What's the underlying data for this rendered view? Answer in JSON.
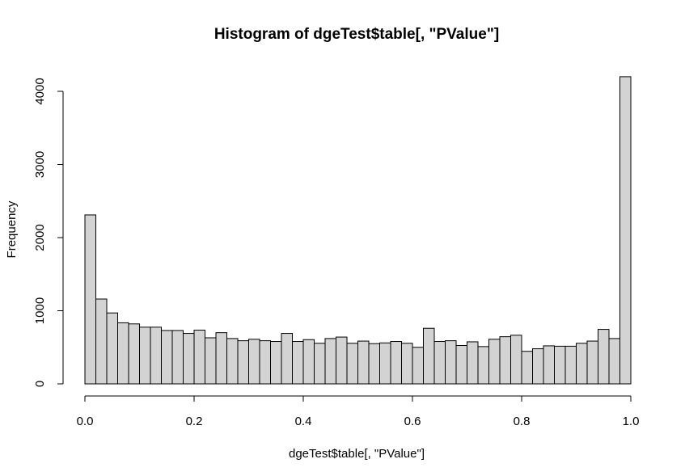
{
  "chart_data": {
    "type": "bar",
    "title": "Histogram of dgeTest$table[, \"PValue\"]",
    "xlabel": "dgeTest$table[, \"PValue\"]",
    "ylabel": "Frequency",
    "bin_width": 0.02,
    "x_range": [
      0,
      1
    ],
    "ylim": [
      0,
      4200
    ],
    "x_ticks": [
      "0.0",
      "0.2",
      "0.4",
      "0.6",
      "0.8",
      "1.0"
    ],
    "x_tick_values": [
      0,
      0.2,
      0.4,
      0.6,
      0.8,
      1.0
    ],
    "y_ticks": [
      "0",
      "1000",
      "2000",
      "3000",
      "4000"
    ],
    "y_tick_values": [
      0,
      1000,
      2000,
      3000,
      4000
    ],
    "bar_fill": "#d3d3d3",
    "bar_stroke": "#000000",
    "grid": false,
    "values": [
      2310,
      1160,
      970,
      835,
      820,
      775,
      775,
      730,
      730,
      690,
      735,
      630,
      700,
      620,
      590,
      610,
      590,
      580,
      690,
      580,
      605,
      555,
      620,
      640,
      555,
      585,
      550,
      560,
      580,
      555,
      500,
      760,
      580,
      590,
      525,
      575,
      510,
      610,
      645,
      665,
      445,
      480,
      520,
      515,
      515,
      555,
      585,
      745,
      620,
      4200
    ]
  }
}
